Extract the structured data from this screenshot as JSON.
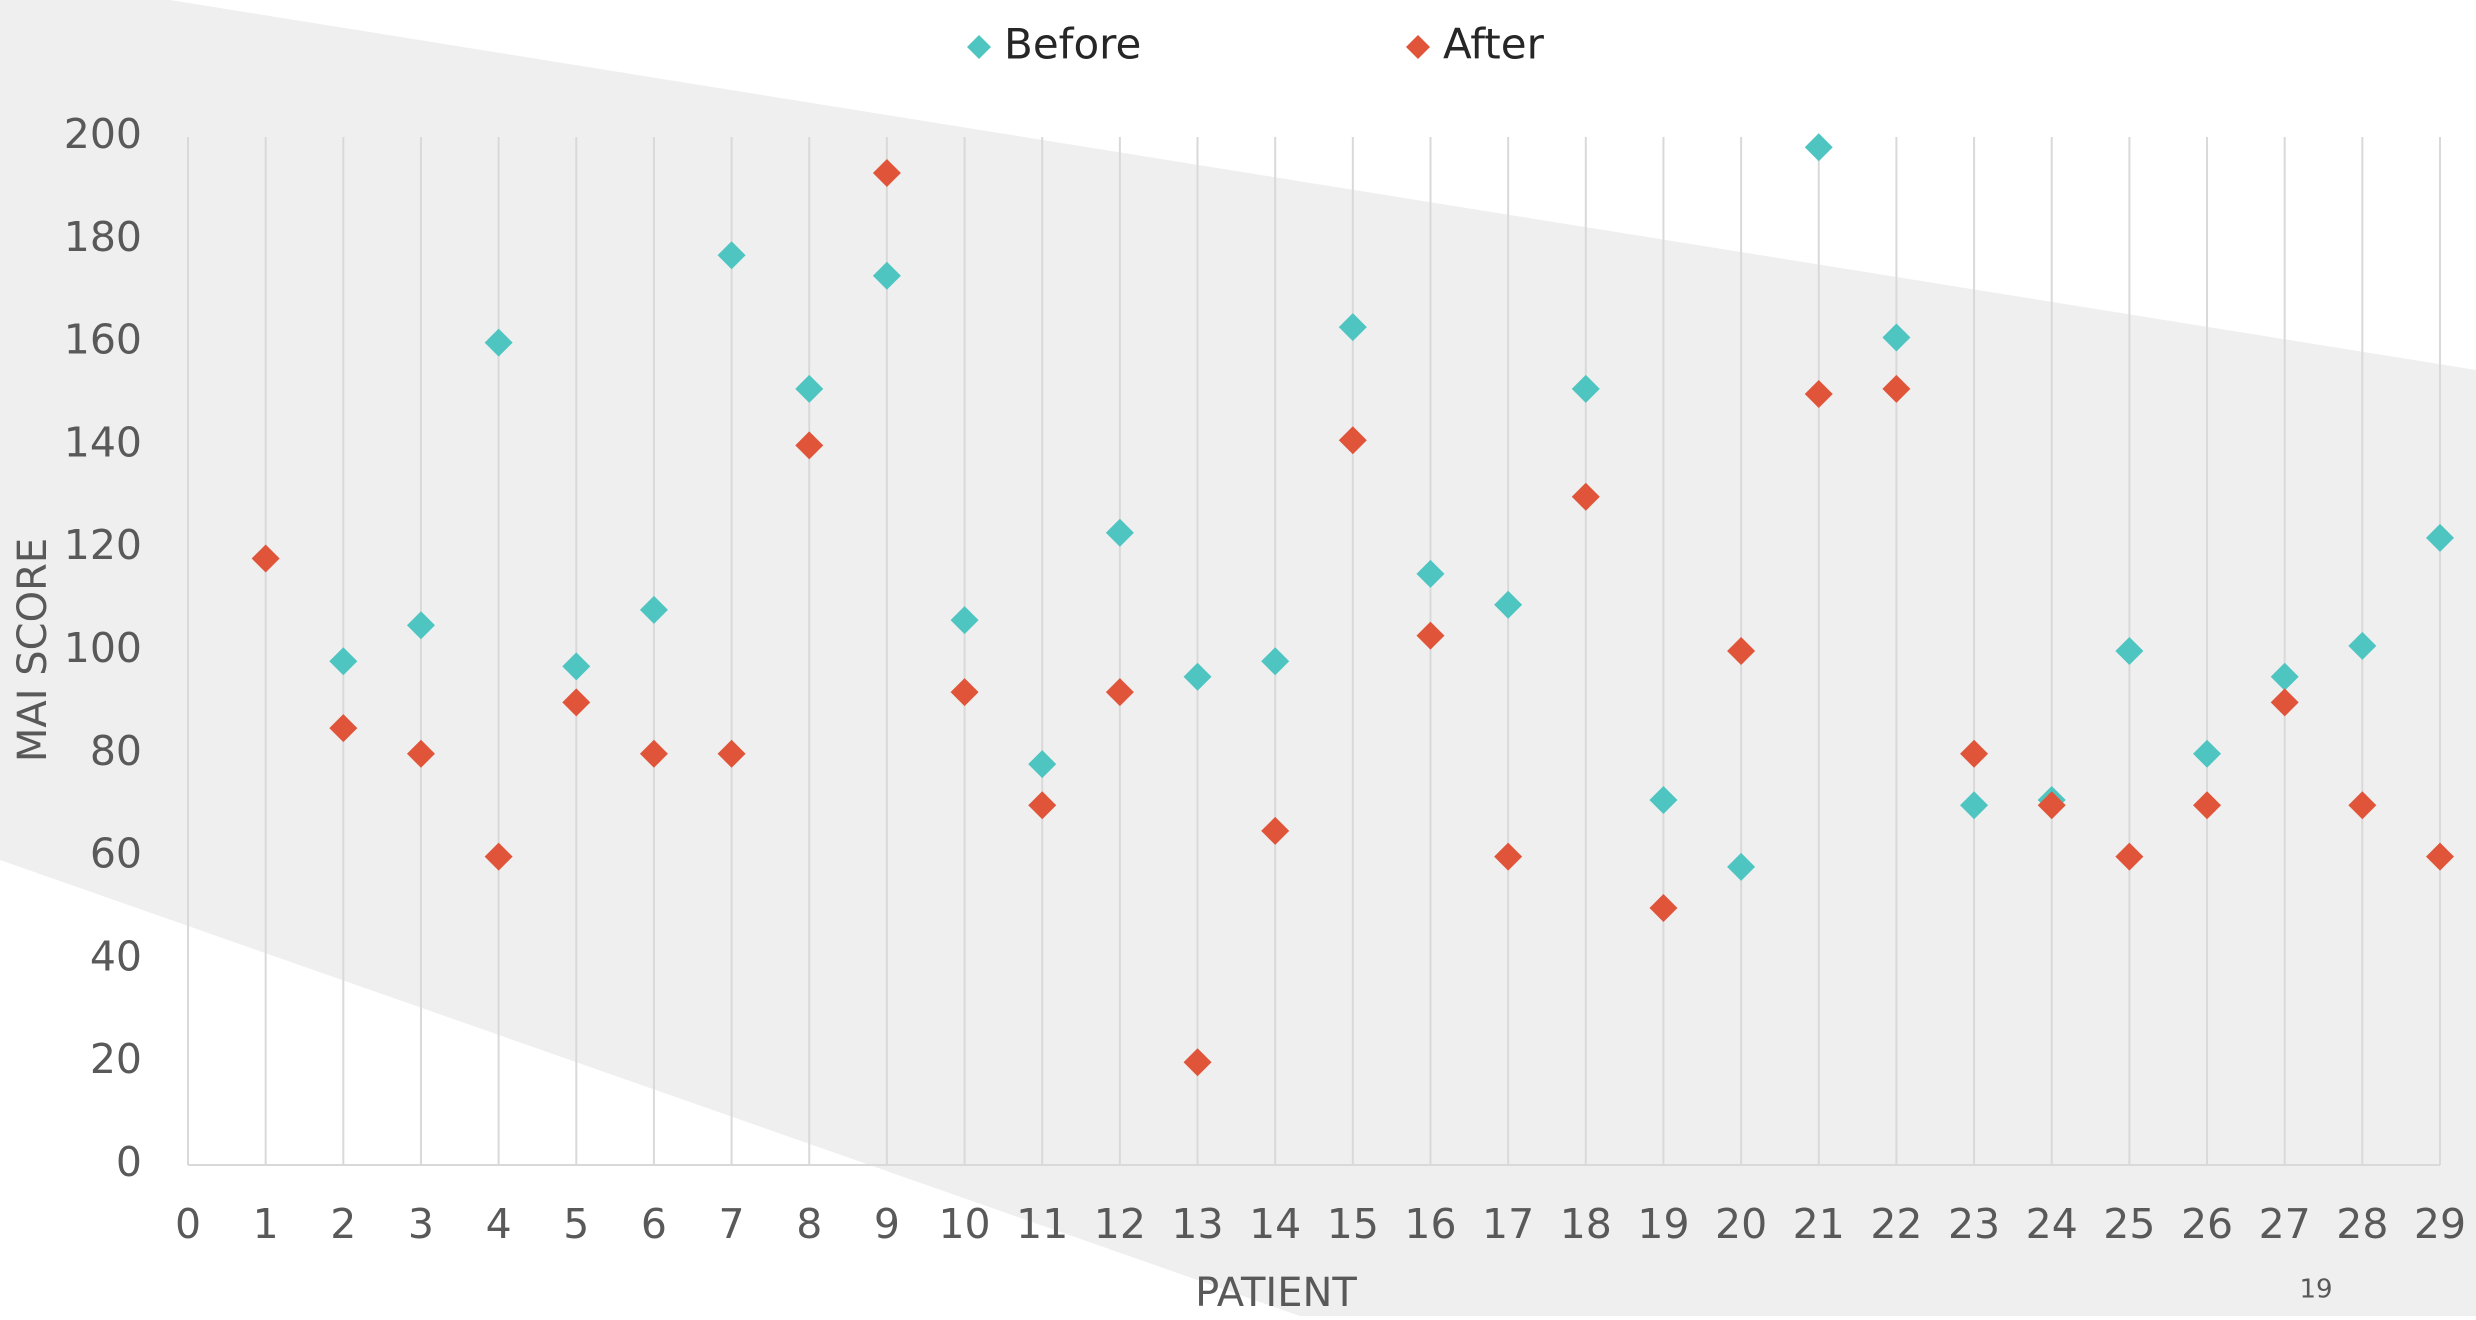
{
  "chart_data": {
    "type": "scatter",
    "x_label": "PATIENT",
    "y_label": "MAI SCORE",
    "page_number": "19",
    "xlim": [
      0,
      29
    ],
    "xticks": [
      0,
      1,
      2,
      3,
      4,
      5,
      6,
      7,
      8,
      9,
      10,
      11,
      12,
      13,
      14,
      15,
      16,
      17,
      18,
      19,
      20,
      21,
      22,
      23,
      24,
      25,
      26,
      27,
      28,
      29
    ],
    "ylim": [
      0,
      200
    ],
    "yticks": [
      0,
      20,
      40,
      60,
      80,
      100,
      120,
      140,
      160,
      180,
      200
    ],
    "grid": "vertical",
    "legend": "top",
    "marker": "diamond",
    "series": [
      {
        "name": "Before",
        "color": "#4ec5c1",
        "x": [
          2,
          3,
          4,
          5,
          6,
          7,
          8,
          9,
          10,
          11,
          12,
          13,
          14,
          15,
          16,
          17,
          18,
          19,
          20,
          21,
          22,
          23,
          24,
          25,
          26,
          27,
          28,
          29
        ],
        "values": [
          98,
          105,
          160,
          97,
          108,
          177,
          151,
          173,
          106,
          78,
          123,
          95,
          98,
          163,
          115,
          109,
          151,
          71,
          58,
          198,
          161,
          70,
          71,
          100,
          80,
          95,
          101,
          122
        ]
      },
      {
        "name": "After",
        "color": "#e0553a",
        "x": [
          1,
          2,
          3,
          4,
          5,
          6,
          7,
          8,
          9,
          10,
          11,
          12,
          13,
          14,
          15,
          16,
          17,
          18,
          19,
          20,
          21,
          22,
          23,
          24,
          25,
          26,
          27,
          28,
          29
        ],
        "values": [
          118,
          85,
          80,
          60,
          90,
          80,
          80,
          140,
          193,
          92,
          70,
          92,
          20,
          65,
          141,
          103,
          60,
          130,
          50,
          100,
          150,
          151,
          80,
          70,
          60,
          70,
          90,
          70,
          60
        ]
      }
    ]
  }
}
